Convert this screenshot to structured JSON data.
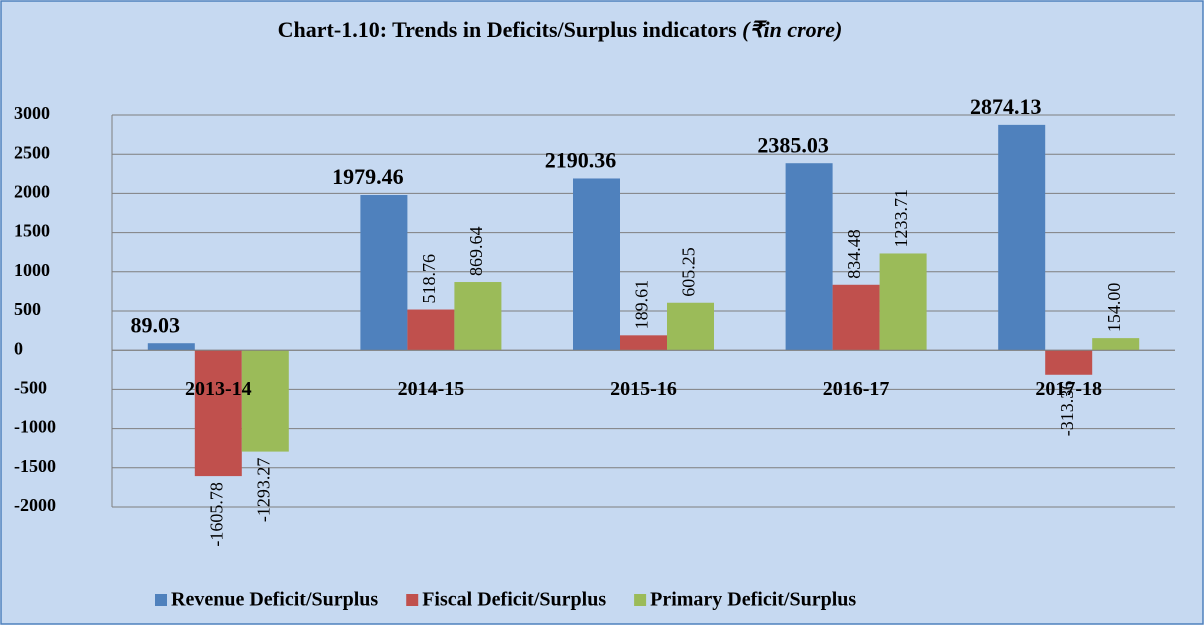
{
  "chart_data": {
    "type": "bar",
    "title": "Chart-1.10: Trends in Deficits/Surplus indicators",
    "subtitle": "(₹in crore)",
    "categories": [
      "2013-14",
      "2014-15",
      "2015-16",
      "2016-17",
      "2017-18"
    ],
    "series": [
      {
        "name": "Revenue Deficit/Surplus",
        "color": "#4f81bd",
        "values": [
          89.03,
          1979.46,
          2190.36,
          2385.03,
          2874.13
        ]
      },
      {
        "name": "Fiscal Deficit/Surplus",
        "color": "#c0504d",
        "values": [
          -1605.78,
          518.76,
          189.61,
          834.48,
          -313.36
        ]
      },
      {
        "name": "Primary Deficit/Surplus",
        "color": "#9bbb59",
        "values": [
          -1293.27,
          869.64,
          605.25,
          1233.71,
          154.0
        ],
        "value_labels": [
          "-1293.27",
          "869.64",
          "605.25",
          "1233.71",
          "154.00"
        ]
      }
    ],
    "ylim": [
      -2000,
      3000
    ],
    "yticks": [
      -2000,
      -1500,
      -1000,
      -500,
      0,
      500,
      1000,
      1500,
      2000,
      2500,
      3000
    ],
    "grid": true,
    "legend": "bottom"
  }
}
